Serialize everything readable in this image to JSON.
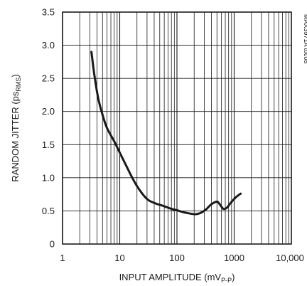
{
  "chart_data": {
    "type": "line",
    "title": "",
    "xlabel": "INPUT AMPLITUDE (mV",
    "xlabel_sub": "P-P",
    "xlabel_end": ")",
    "ylabel": "RANDOM JITTER (ps",
    "ylabel_sub": "RMS",
    "ylabel_end": ")",
    "x_scale": "log",
    "xlim": [
      1,
      10000
    ],
    "ylim": [
      0,
      3.5
    ],
    "x_ticks": [
      1,
      10,
      100,
      1000,
      10000
    ],
    "x_tick_labels": [
      "1",
      "10",
      "100",
      "1000",
      "10,000"
    ],
    "y_ticks": [
      0,
      0.5,
      1.0,
      1.5,
      2.0,
      2.5,
      3.0,
      3.5
    ],
    "y_tick_labels": [
      "0",
      "0.5",
      "1.0",
      "1.5",
      "2.0",
      "2.5",
      "3.0",
      "3.5"
    ],
    "grid": true,
    "chart_id": "MAX3971A toc08",
    "series": [
      {
        "x": [
          3.2,
          3.6,
          4.2,
          5,
          6,
          8,
          10,
          13,
          17,
          22,
          30,
          40,
          60,
          80,
          100,
          130,
          170,
          210,
          260,
          320,
          400,
          500,
          560,
          650,
          750,
          850,
          1000,
          1200,
          1300
        ],
        "y": [
          2.9,
          2.55,
          2.2,
          1.95,
          1.75,
          1.55,
          1.38,
          1.18,
          0.98,
          0.82,
          0.68,
          0.62,
          0.57,
          0.53,
          0.51,
          0.48,
          0.46,
          0.45,
          0.47,
          0.52,
          0.6,
          0.64,
          0.6,
          0.53,
          0.55,
          0.61,
          0.68,
          0.74,
          0.76
        ]
      }
    ]
  }
}
